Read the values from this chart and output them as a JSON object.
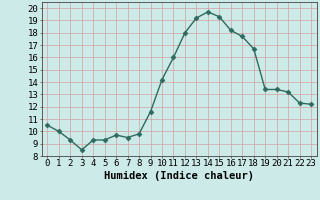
{
  "x": [
    0,
    1,
    2,
    3,
    4,
    5,
    6,
    7,
    8,
    9,
    10,
    11,
    12,
    13,
    14,
    15,
    16,
    17,
    18,
    19,
    20,
    21,
    22,
    23
  ],
  "y": [
    10.5,
    10.0,
    9.3,
    8.5,
    9.3,
    9.3,
    9.7,
    9.5,
    9.8,
    11.6,
    14.2,
    16.0,
    18.0,
    19.2,
    19.7,
    19.3,
    18.2,
    17.7,
    16.7,
    13.4,
    13.4,
    13.2,
    12.3,
    12.2
  ],
  "line_color": "#2e6b5e",
  "marker": "D",
  "marker_size": 2.5,
  "bg_color": "#cceae8",
  "grid_color": "#d4a0a0",
  "xlabel": "Humidex (Indice chaleur)",
  "xlim": [
    -0.5,
    23.5
  ],
  "ylim": [
    8.0,
    20.5
  ],
  "yticks": [
    8,
    9,
    10,
    11,
    12,
    13,
    14,
    15,
    16,
    17,
    18,
    19,
    20
  ],
  "xticks": [
    0,
    1,
    2,
    3,
    4,
    5,
    6,
    7,
    8,
    9,
    10,
    11,
    12,
    13,
    14,
    15,
    16,
    17,
    18,
    19,
    20,
    21,
    22,
    23
  ],
  "xlabel_fontsize": 7.5,
  "tick_fontsize": 6.5,
  "line_width": 1.0
}
